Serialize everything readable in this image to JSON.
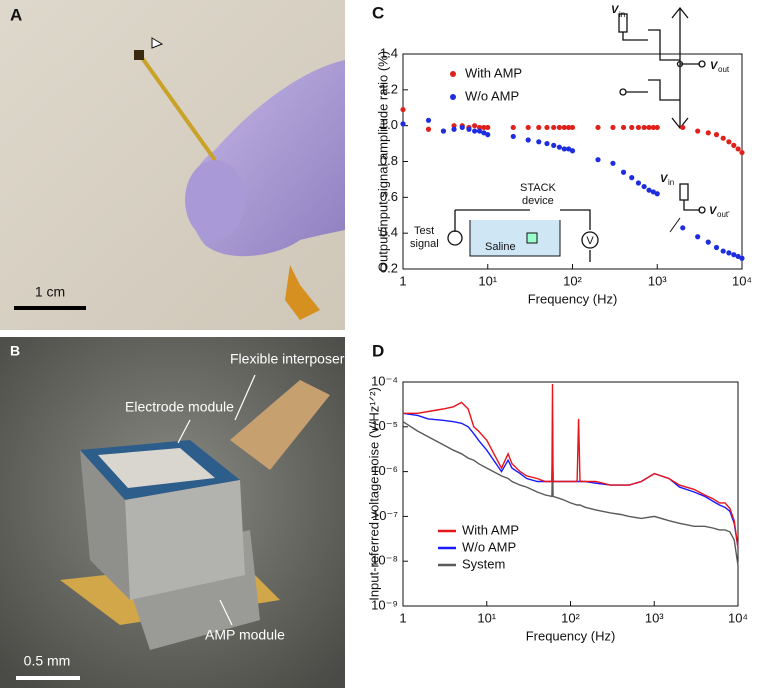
{
  "panels": [
    {
      "label": "A",
      "texts": [
        "1 cm"
      ]
    },
    {
      "label": "B",
      "texts": [
        "Flexible interposer",
        "Electrode module",
        "AMP module",
        "0.5 mm"
      ]
    },
    {
      "label": "C"
    },
    {
      "label": "D"
    }
  ],
  "chart_data": [
    {
      "type": "scatter",
      "x_label": "Frequency (Hz)",
      "y_label": "Output/input signal amplitude ratio (%)",
      "xscale": "log",
      "yscale": "linear",
      "legend": "upper left",
      "xlim": [
        1,
        10000
      ],
      "xticks": [
        1,
        {
          "value": 10,
          "label": "10¹"
        },
        {
          "value": 100,
          "label": "10²"
        },
        {
          "value": 1000,
          "label": "10³"
        },
        {
          "value": 10000,
          "label": "10⁴"
        }
      ],
      "ylim": [
        0.2,
        1.4
      ],
      "yticks": [
        0.2,
        0.4,
        0.6,
        0.8,
        {
          "value": 1,
          "label": "1.0"
        },
        1.2,
        1.4
      ],
      "annotations": [
        "V",
        "in",
        "V",
        "out",
        "V",
        "in",
        "V",
        "out'",
        "STACK",
        "device",
        "Test",
        "signal",
        "Saline",
        "V"
      ],
      "x": [
        1,
        2,
        3,
        4,
        5,
        6,
        7,
        8,
        9,
        10,
        20,
        30,
        40,
        50,
        60,
        70,
        80,
        90,
        100,
        200,
        300,
        400,
        500,
        600,
        700,
        800,
        900,
        1000,
        2000,
        3000,
        4000,
        5000,
        6000,
        7000,
        8000,
        9000,
        10000
      ],
      "series": [
        {
          "name": "With AMP",
          "color": "#e0201b",
          "values": [
            1.09,
            0.98,
            0.97,
            1.0,
            1.0,
            0.99,
            1.0,
            0.99,
            0.99,
            0.99,
            0.99,
            0.99,
            0.99,
            0.99,
            0.99,
            0.99,
            0.99,
            0.99,
            0.99,
            0.99,
            0.99,
            0.99,
            0.99,
            0.99,
            0.99,
            0.99,
            0.99,
            0.99,
            0.99,
            0.97,
            0.96,
            0.95,
            0.93,
            0.91,
            0.89,
            0.87,
            0.85
          ]
        },
        {
          "name": "W/o AMP",
          "color": "#1f2de0",
          "values": [
            1.01,
            1.03,
            0.97,
            0.98,
            0.99,
            0.98,
            0.97,
            0.97,
            0.96,
            0.95,
            0.94,
            0.92,
            0.91,
            0.9,
            0.89,
            0.88,
            0.87,
            0.87,
            0.86,
            0.81,
            0.79,
            0.74,
            0.71,
            0.68,
            0.66,
            0.64,
            0.63,
            0.62,
            0.43,
            0.38,
            0.35,
            0.32,
            0.3,
            0.29,
            0.28,
            0.27,
            0.26
          ]
        }
      ]
    },
    {
      "type": "line",
      "x_label": "Frequency (Hz)",
      "y_label": "Input-referred voltage noise (V/Hz¹ᐟ²)",
      "xscale": "log",
      "yscale": "log",
      "legend": "lower left",
      "xlim": [
        1,
        10000
      ],
      "xticks": [
        1,
        {
          "value": 10,
          "label": "10¹"
        },
        {
          "value": 100,
          "label": "10²"
        },
        {
          "value": 1000,
          "label": "10³"
        },
        {
          "value": 10000,
          "label": "10⁴"
        }
      ],
      "ylim": [
        1e-09,
        0.0001
      ],
      "yticks": [
        {
          "value": 1e-09,
          "label": "10⁻⁹"
        },
        {
          "value": 1e-08,
          "label": "10⁻⁸"
        },
        {
          "value": 1e-07,
          "label": "10⁻⁷"
        },
        {
          "value": 1e-06,
          "label": "10⁻⁶"
        },
        {
          "value": 1e-05,
          "label": "10⁻⁵"
        },
        {
          "value": 0.0001,
          "label": "10⁻⁴"
        }
      ],
      "x": [
        1,
        1.5,
        2,
        3,
        4,
        5,
        6,
        7,
        8,
        10,
        15,
        18,
        20,
        25,
        30,
        40,
        50,
        60,
        61,
        62,
        70,
        80,
        100,
        120,
        125,
        130,
        150,
        200,
        300,
        400,
        500,
        700,
        1000,
        1500,
        2000,
        3000,
        4000,
        5000,
        6000,
        7000,
        8000,
        9000,
        10000
      ],
      "series": [
        {
          "name": "System",
          "color": "#5a5a5a",
          "values": [
            1.3e-05,
            8e-06,
            6e-06,
            4e-06,
            3e-06,
            2.5e-06,
            2e-06,
            1.8e-06,
            1.5e-06,
            1.2e-06,
            8e-07,
            7e-07,
            6e-07,
            5e-07,
            4.5e-07,
            3.5e-07,
            3e-07,
            2.8e-07,
            1.5e-06,
            2.8e-07,
            2.6e-07,
            2.4e-07,
            2e-07,
            1.8e-07,
            1.8e-07,
            1.8e-07,
            1.6e-07,
            1.4e-07,
            1.2e-07,
            1.1e-07,
            1e-07,
            9e-08,
            1e-07,
            8e-08,
            7e-08,
            6e-08,
            6e-08,
            5.5e-08,
            5e-08,
            5e-08,
            4.5e-08,
            3e-08,
            8e-09
          ]
        },
        {
          "name": "W/o AMP",
          "color": "#1a1aff",
          "values": [
            2e-05,
            1.8e-05,
            1.5e-05,
            1.4e-05,
            1.3e-05,
            1.2e-05,
            1e-05,
            7e-06,
            5e-06,
            3e-06,
            1e-06,
            1.8e-06,
            1.2e-06,
            9e-07,
            7e-07,
            6e-07,
            6e-07,
            6e-07,
            3e-06,
            6e-07,
            6e-07,
            6e-07,
            6e-07,
            6e-07,
            6e-07,
            6e-07,
            6e-07,
            5.5e-07,
            5e-07,
            5e-07,
            5e-07,
            6e-07,
            9e-07,
            7e-07,
            4.5e-07,
            3.5e-07,
            2.8e-07,
            2.2e-07,
            1.8e-07,
            1.6e-07,
            1.3e-07,
            7e-08,
            2e-08
          ]
        },
        {
          "name": "With AMP",
          "color": "#e8141a",
          "values": [
            2e-05,
            2e-05,
            2.2e-05,
            2.5e-05,
            2.8e-05,
            3.5e-05,
            2.5e-05,
            1e-05,
            8e-06,
            5e-06,
            1.2e-06,
            2.5e-06,
            1.5e-06,
            1e-06,
            8e-07,
            7e-07,
            6e-07,
            6e-07,
            9e-05,
            6e-07,
            6e-07,
            6e-07,
            6e-07,
            6e-07,
            1.5e-05,
            6e-07,
            6e-07,
            6e-07,
            5e-07,
            5e-07,
            5e-07,
            6e-07,
            9e-07,
            7e-07,
            5e-07,
            4e-07,
            3e-07,
            2.5e-07,
            2e-07,
            2e-07,
            1.5e-07,
            8e-08,
            2e-08
          ]
        }
      ]
    }
  ]
}
